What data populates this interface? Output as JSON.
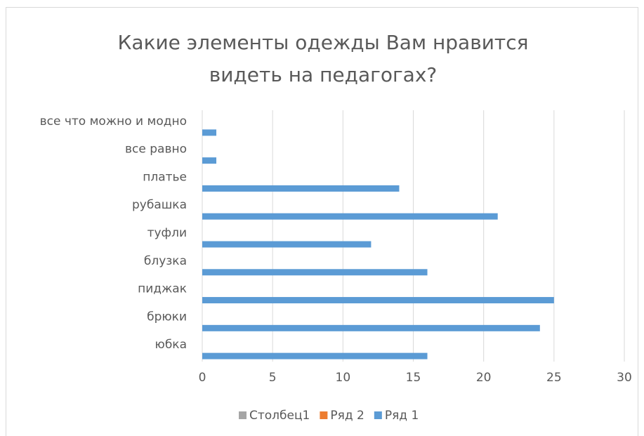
{
  "chart_data": {
    "type": "bar",
    "orientation": "horizontal",
    "title": "Какие элементы одежды Вам нравится видеть на педагогах?",
    "categories": [
      "юбка",
      "брюки",
      "пиджак",
      "блузка",
      "туфли",
      "рубашка",
      "платье",
      "все равно",
      "все что можно и модно"
    ],
    "series": [
      {
        "name": "Столбец1",
        "color": "#a5a5a5",
        "values": [
          null,
          null,
          null,
          null,
          null,
          null,
          null,
          null,
          null
        ]
      },
      {
        "name": "Ряд 2",
        "color": "#ed7d31",
        "values": [
          null,
          null,
          null,
          null,
          null,
          null,
          null,
          null,
          null
        ]
      },
      {
        "name": "Ряд 1",
        "color": "#5b9bd5",
        "values": [
          16,
          24,
          25,
          16,
          12,
          21,
          14,
          1,
          1
        ]
      }
    ],
    "xlim": [
      0,
      30
    ],
    "xticks": [
      0,
      5,
      10,
      15,
      20,
      25,
      30
    ],
    "grid": true,
    "legend": "bottom"
  }
}
